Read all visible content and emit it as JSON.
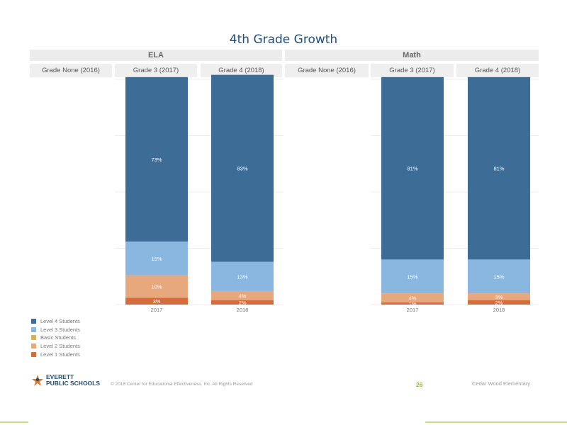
{
  "page_title": "4th Grade Growth",
  "subjects": [
    {
      "label": "ELA"
    },
    {
      "label": "Math"
    }
  ],
  "column_headers": [
    {
      "label": "Grade None (2016)"
    },
    {
      "label": "Grade 3 (2017)"
    },
    {
      "label": "Grade 4 (2018)"
    },
    {
      "label": "Grade None (2016)"
    },
    {
      "label": "Grade 3 (2017)"
    },
    {
      "label": "Grade 4 (2018)"
    }
  ],
  "legend": [
    {
      "label": "Level 4 Students",
      "color": "#3d6d96"
    },
    {
      "label": "Level 3 Students",
      "color": "#89b7e0"
    },
    {
      "label": "Basic Students",
      "color": "#d4b35a"
    },
    {
      "label": "Level 2 Students",
      "color": "#e8a87e"
    },
    {
      "label": "Level 1 Students",
      "color": "#d66c3c"
    }
  ],
  "chart_data": [
    {
      "type": "bar",
      "stacked": true,
      "title": "ELA",
      "categories": [
        "2017",
        "2018"
      ],
      "series": [
        {
          "name": "Level 1 Students",
          "values": [
            3,
            2
          ],
          "labels": [
            "3%",
            "2%"
          ],
          "color": "#d66c3c"
        },
        {
          "name": "Level 2 Students",
          "values": [
            10,
            4
          ],
          "labels": [
            "10%",
            "4%"
          ],
          "color": "#e8a87e"
        },
        {
          "name": "Basic Students",
          "values": [
            0,
            0
          ],
          "labels": [
            "",
            ""
          ],
          "color": "#d4b35a"
        },
        {
          "name": "Level 3 Students",
          "values": [
            15,
            13
          ],
          "labels": [
            "15%",
            "13%"
          ],
          "color": "#89b7e0"
        },
        {
          "name": "Level 4 Students",
          "values": [
            73,
            83
          ],
          "labels": [
            "73%",
            "83%"
          ],
          "color": "#3d6d96"
        }
      ],
      "ylim": [
        0,
        100
      ]
    },
    {
      "type": "bar",
      "stacked": true,
      "title": "Math",
      "categories": [
        "2017",
        "2018"
      ],
      "series": [
        {
          "name": "Level 1 Students",
          "values": [
            1,
            2
          ],
          "labels": [
            "1%",
            "2%"
          ],
          "color": "#d66c3c"
        },
        {
          "name": "Level 2 Students",
          "values": [
            4,
            3
          ],
          "labels": [
            "4%",
            "3%"
          ],
          "color": "#e8a87e"
        },
        {
          "name": "Basic Students",
          "values": [
            0,
            0
          ],
          "labels": [
            "",
            ""
          ],
          "color": "#d4b35a"
        },
        {
          "name": "Level 3 Students",
          "values": [
            15,
            15
          ],
          "labels": [
            "15%",
            "15%"
          ],
          "color": "#89b7e0"
        },
        {
          "name": "Level 4 Students",
          "values": [
            81,
            81
          ],
          "labels": [
            "81%",
            "81%"
          ],
          "color": "#3d6d96"
        }
      ],
      "ylim": [
        0,
        100
      ]
    }
  ],
  "footer": {
    "logo_line1": "EVERETT",
    "logo_line2": "PUBLIC SCHOOLS",
    "copyright": "© 2018 Center for Educational Effectiveness, Inc. All Rights Reserved",
    "page_number": "26",
    "school": "Cedar Wood Elementary"
  }
}
